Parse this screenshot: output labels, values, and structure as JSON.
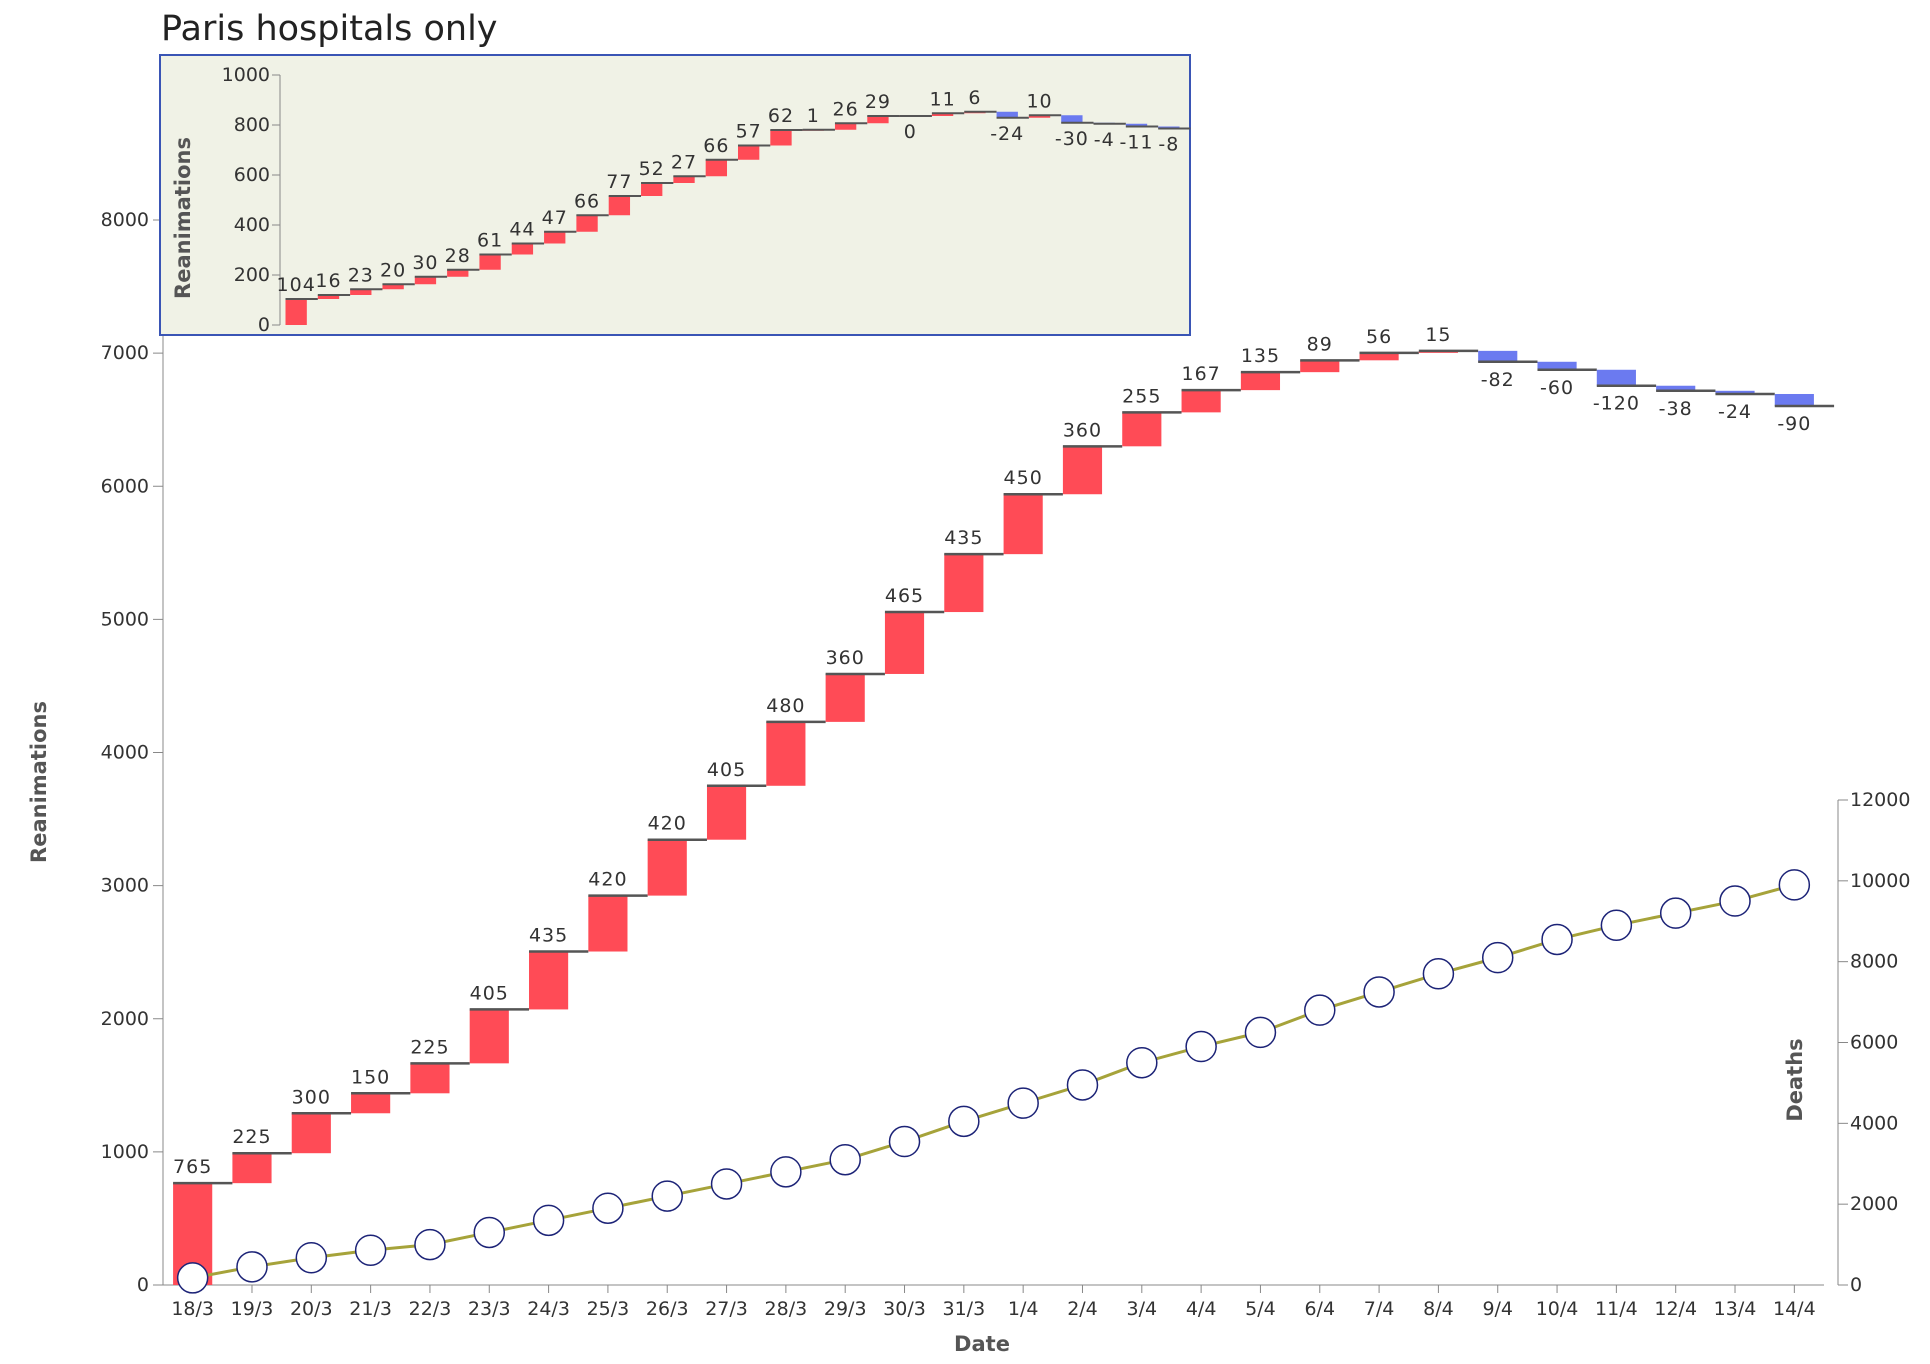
{
  "chart_data": [
    {
      "type": "waterfall",
      "title": "",
      "xlabel": "Date",
      "ylabel": "Reanimations",
      "y2label": "Deaths",
      "categories": [
        "18/3",
        "19/3",
        "20/3",
        "21/3",
        "22/3",
        "23/3",
        "24/3",
        "25/3",
        "26/3",
        "27/3",
        "28/3",
        "29/3",
        "30/3",
        "31/3",
        "1/4",
        "2/4",
        "3/4",
        "4/4",
        "5/4",
        "6/4",
        "7/4",
        "8/4",
        "9/4",
        "10/4",
        "11/4",
        "12/4",
        "13/4",
        "14/4"
      ],
      "ylim": [
        0,
        8000
      ],
      "yticks": [
        0,
        1000,
        2000,
        3000,
        4000,
        5000,
        6000,
        7000,
        8000
      ],
      "y2lim": [
        0,
        12000
      ],
      "y2ticks": [
        0,
        2000,
        4000,
        6000,
        8000,
        10000,
        12000
      ],
      "series": [
        {
          "kind": "waterfall-bars",
          "values": [
            765,
            225,
            300,
            150,
            225,
            405,
            435,
            420,
            420,
            405,
            480,
            360,
            465,
            435,
            450,
            360,
            255,
            167,
            135,
            89,
            56,
            15,
            -82,
            -60,
            -120,
            -38,
            -24,
            -90
          ]
        },
        {
          "name": "Deaths",
          "kind": "line-markers",
          "axis": "y2",
          "values": [
            175,
            450,
            675,
            860,
            1000,
            1300,
            1600,
            1900,
            2200,
            2500,
            2800,
            3100,
            3550,
            4050,
            4500,
            4950,
            5500,
            5900,
            6250,
            6800,
            7250,
            7700,
            8100,
            8550,
            8900,
            9200,
            9500,
            9900
          ]
        }
      ],
      "colors": {
        "increase": "#ff4b56",
        "decrease": "#6b7af0",
        "step_line": "#555555",
        "deaths_line": "#a6a33a",
        "marker_stroke": "#1c2377",
        "marker_fill": "#ffffff"
      }
    },
    {
      "type": "waterfall",
      "title": "Paris hospitals only",
      "ylabel": "Reanimations",
      "ylim": [
        0,
        1000
      ],
      "yticks": [
        0,
        200,
        400,
        600,
        800,
        1000
      ],
      "values": [
        104,
        16,
        23,
        20,
        30,
        28,
        61,
        44,
        47,
        66,
        77,
        52,
        27,
        66,
        57,
        62,
        1,
        26,
        29,
        0,
        11,
        6,
        -24,
        10,
        -30,
        -4,
        -11,
        -8
      ],
      "background": "#f0f2e6",
      "border": "#3a55b5"
    }
  ]
}
